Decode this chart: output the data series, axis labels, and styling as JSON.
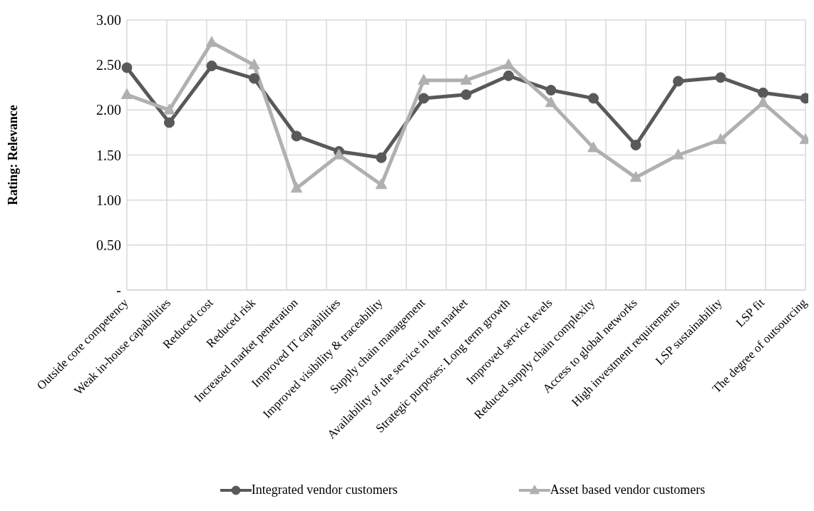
{
  "chart_data": {
    "type": "line",
    "ylabel": "Rating: Relevance",
    "categories": [
      "Outside core competency",
      "Weak in-house capabilities",
      "Reduced cost",
      "Reduced risk",
      "Increased market penetration",
      "Improved IT capabilities",
      "Improved visibility & traceability",
      "Supply chain management",
      "Availability of the service in the market",
      "Strategic purposes: Long term growth",
      "Improved service levels",
      "Reduced supply chain complexity",
      "Access to global networks",
      "High investment requirements",
      "LSP sustainability",
      "LSP fit",
      "The degree of outsourcing"
    ],
    "series": [
      {
        "name": "Integrated vendor customers",
        "color": "#595959",
        "marker": "circle",
        "values": [
          2.47,
          1.86,
          2.49,
          2.35,
          1.71,
          1.54,
          1.47,
          2.13,
          2.17,
          2.38,
          2.22,
          2.13,
          1.61,
          2.32,
          2.36,
          2.19,
          2.13
        ]
      },
      {
        "name": "Asset based vendor customers",
        "color": "#b0b0b0",
        "marker": "triangle",
        "values": [
          2.17,
          2.0,
          2.75,
          2.5,
          1.13,
          1.5,
          1.17,
          2.33,
          2.33,
          2.5,
          2.08,
          1.58,
          1.25,
          1.5,
          1.67,
          2.08,
          1.67
        ]
      }
    ],
    "ylim": [
      0,
      3
    ],
    "yticks": [
      {
        "value": 0,
        "label": "-"
      },
      {
        "value": 0.5,
        "label": "0.50"
      },
      {
        "value": 1,
        "label": "1.00"
      },
      {
        "value": 1.5,
        "label": "1.50"
      },
      {
        "value": 2,
        "label": "2.00"
      },
      {
        "value": 2.5,
        "label": "2.50"
      },
      {
        "value": 3,
        "label": "3.00"
      }
    ],
    "grid": true,
    "legend": "bottom"
  }
}
